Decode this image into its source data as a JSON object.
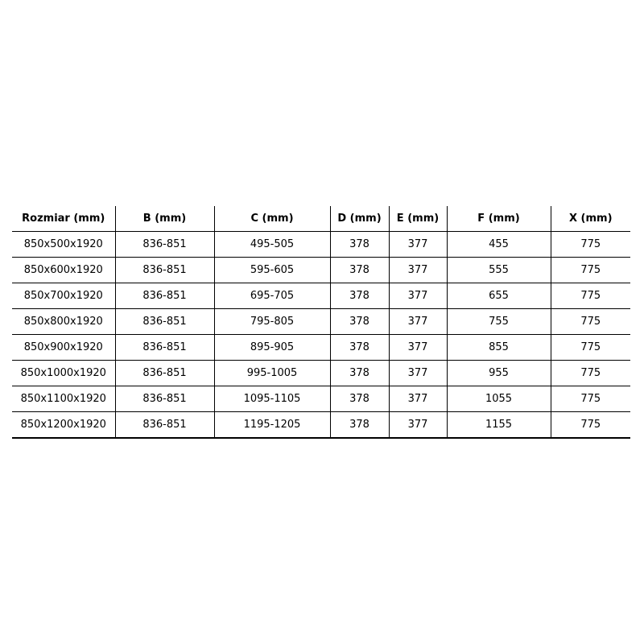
{
  "headers": [
    "Rozmiar (mm)",
    "B (mm)",
    "C (mm)",
    "D (mm)",
    "E (mm)",
    "F (mm)",
    "X (mm)"
  ],
  "rows": [
    [
      "850x500x1920",
      "836-851",
      "495-505",
      "378",
      "377",
      "455",
      "775"
    ],
    [
      "850x600x1920",
      "836-851",
      "595-605",
      "378",
      "377",
      "555",
      "775"
    ],
    [
      "850x700x1920",
      "836-851",
      "695-705",
      "378",
      "377",
      "655",
      "775"
    ],
    [
      "850x800x1920",
      "836-851",
      "795-805",
      "378",
      "377",
      "755",
      "775"
    ],
    [
      "850x900x1920",
      "836-851",
      "895-905",
      "378",
      "377",
      "855",
      "775"
    ],
    [
      "850x1000x1920",
      "836-851",
      "995-1005",
      "378",
      "377",
      "955",
      "775"
    ],
    [
      "850x1100x1920",
      "836-851",
      "1095-1105",
      "378",
      "377",
      "1055",
      "775"
    ],
    [
      "850x1200x1920",
      "836-851",
      "1195-1205",
      "378",
      "377",
      "1155",
      "775"
    ]
  ]
}
